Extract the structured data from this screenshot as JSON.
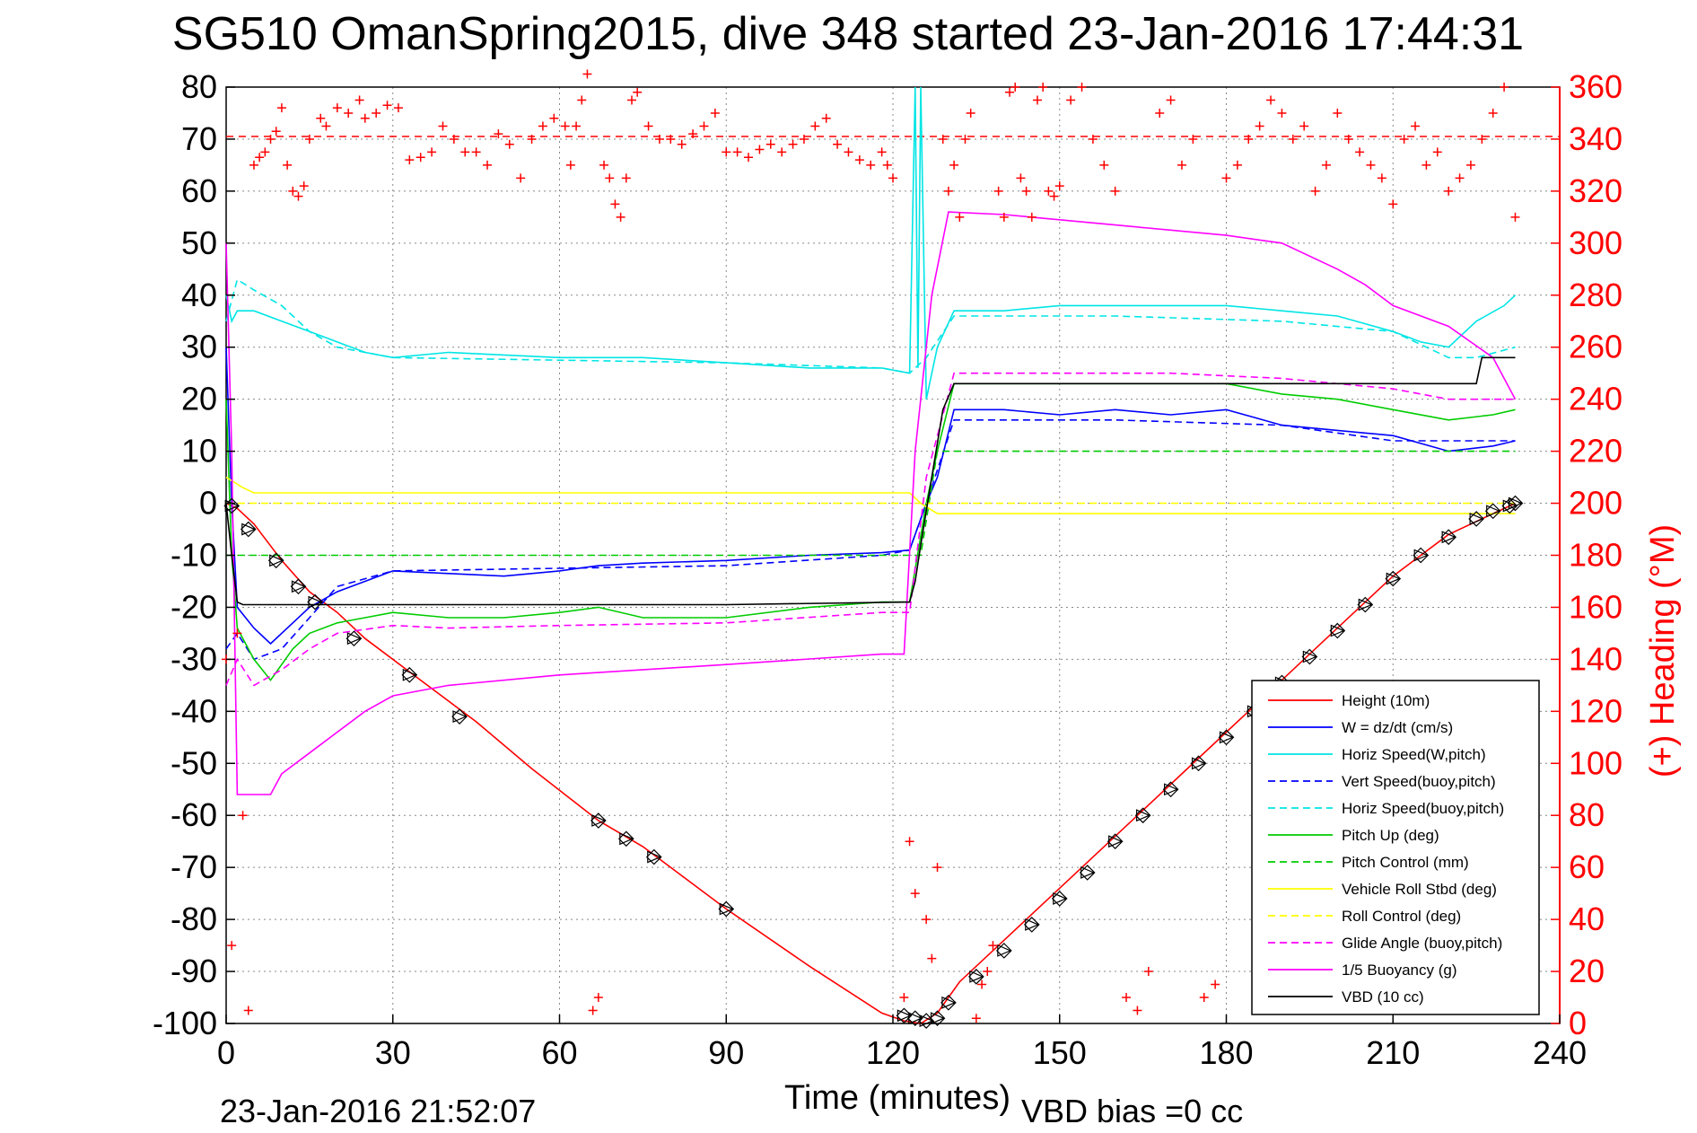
{
  "chart_data": {
    "type": "line",
    "title": "SG510 OmanSpring2015, dive 348 started 23-Jan-2016 17:44:31",
    "xlabel": "Time (minutes)",
    "ylabel_right": "(+) Heading (°M)",
    "xlim": [
      0,
      240
    ],
    "ylim": [
      -100,
      80
    ],
    "y2lim": [
      0,
      360
    ],
    "x_ticks": [
      0,
      30,
      60,
      90,
      120,
      150,
      180,
      210,
      240
    ],
    "y_ticks": [
      80,
      70,
      60,
      50,
      40,
      30,
      20,
      10,
      0,
      -10,
      -20,
      -30,
      -40,
      -50,
      -60,
      -70,
      -80,
      -90,
      -100
    ],
    "y2_ticks": [
      360,
      340,
      320,
      300,
      280,
      260,
      240,
      220,
      200,
      180,
      160,
      140,
      120,
      100,
      80,
      60,
      40,
      20,
      0
    ],
    "grid": true,
    "legend_position": "bottom-right",
    "footer_left": "23-Jan-2016 21:52:07",
    "footer_right": "VBD bias =0 cc",
    "reference_heading": 341,
    "series": [
      {
        "name": "Height (10m)",
        "color": "#ff0000",
        "style": "solid",
        "x": [
          0,
          2,
          5,
          10,
          15,
          20,
          25,
          35,
          45,
          55,
          67,
          75,
          90,
          105,
          118,
          122,
          125,
          128,
          132,
          140,
          150,
          160,
          170,
          180,
          190,
          200,
          210,
          220,
          228,
          232
        ],
        "y": [
          0,
          -1,
          -4,
          -11,
          -17,
          -21,
          -26,
          -34,
          -42,
          -51,
          -61,
          -66,
          -78,
          -89,
          -98,
          -99.5,
          -100,
          -98,
          -92,
          -84,
          -74,
          -64,
          -54,
          -44,
          -34,
          -24,
          -14,
          -6,
          -2,
          0
        ]
      },
      {
        "name": "W = dz/dt (cm/s)",
        "color": "#0000ff",
        "style": "solid",
        "x": [
          0,
          1,
          2,
          5,
          8,
          12,
          15,
          20,
          25,
          30,
          40,
          50,
          60,
          67,
          75,
          90,
          105,
          118,
          123,
          126,
          128,
          131,
          140,
          150,
          160,
          170,
          180,
          190,
          200,
          210,
          220,
          228,
          232
        ],
        "y": [
          30,
          0,
          -20,
          -24,
          -27,
          -23,
          -20,
          -17,
          -15,
          -13,
          -13.5,
          -14,
          -13,
          -12,
          -11.5,
          -11,
          -10,
          -9.5,
          -9,
          0,
          5,
          18,
          18,
          17,
          18,
          17,
          18,
          15,
          14,
          13,
          10,
          11,
          12
        ]
      },
      {
        "name": "Horiz Speed(W,pitch)",
        "color": "#00e5e5",
        "style": "solid",
        "x": [
          0,
          1,
          2,
          5,
          10,
          15,
          20,
          25,
          30,
          40,
          50,
          60,
          75,
          90,
          105,
          118,
          123,
          124,
          124.5,
          125,
          126,
          128,
          131,
          140,
          150,
          160,
          170,
          180,
          190,
          200,
          210,
          215,
          220,
          225,
          230,
          232
        ],
        "y": [
          40,
          35,
          37,
          37,
          35,
          33,
          31,
          29,
          28,
          29,
          28.5,
          28,
          28,
          27,
          26,
          26,
          25,
          80,
          26,
          80,
          20,
          30,
          37,
          37,
          38,
          38,
          38,
          38,
          37,
          36,
          33,
          31,
          30,
          35,
          38,
          40
        ]
      },
      {
        "name": "Vert Speed(buoy,pitch)",
        "color": "#0000ff",
        "style": "dashed",
        "x": [
          0,
          2,
          5,
          10,
          15,
          20,
          30,
          60,
          90,
          118,
          123,
          126,
          131,
          160,
          190,
          210,
          232
        ],
        "y": [
          -28,
          -25,
          -30,
          -28,
          -22,
          -16,
          -13,
          -12.5,
          -12,
          -10,
          -9,
          0,
          16,
          16,
          15,
          12,
          12
        ]
      },
      {
        "name": "Horiz Speed(buoy,pitch)",
        "color": "#00e5e5",
        "style": "dashed",
        "x": [
          0,
          2,
          5,
          10,
          15,
          20,
          30,
          60,
          90,
          118,
          123,
          126,
          131,
          160,
          190,
          210,
          220,
          225,
          232
        ],
        "y": [
          35,
          43,
          41,
          38,
          33,
          30,
          28,
          27.5,
          27,
          26,
          25,
          28,
          36,
          36,
          35,
          33,
          28,
          28,
          30
        ]
      },
      {
        "name": "Pitch Up (deg)",
        "color": "#00cc00",
        "style": "solid",
        "x": [
          0,
          1,
          2,
          5,
          8,
          12,
          15,
          20,
          25,
          30,
          40,
          50,
          60,
          67,
          75,
          90,
          105,
          118,
          123,
          126,
          128,
          131,
          140,
          150,
          160,
          170,
          180,
          190,
          200,
          210,
          220,
          228,
          232
        ],
        "y": [
          20,
          -10,
          -24,
          -30,
          -34,
          -28,
          -25,
          -23,
          -22,
          -21,
          -22,
          -22,
          -21,
          -20,
          -22,
          -22,
          -20,
          -19,
          -19,
          0,
          10,
          23,
          23,
          23,
          23,
          23,
          23,
          21,
          20,
          18,
          16,
          17,
          18
        ]
      },
      {
        "name": "Pitch Control (mm)",
        "color": "#00cc00",
        "style": "dashed",
        "x": [
          0,
          2,
          3,
          20,
          40,
          60,
          90,
          120,
          123,
          125,
          128,
          131,
          160,
          190,
          232
        ],
        "y": [
          -10,
          -10,
          -10,
          -10,
          -10,
          -10,
          -10,
          -10,
          -10,
          -10,
          10,
          10,
          10,
          10,
          10
        ]
      },
      {
        "name": "Vehicle Roll Stbd (deg)",
        "color": "#ffff00",
        "style": "solid",
        "x": [
          0,
          3,
          5,
          10,
          15,
          20,
          30,
          60,
          90,
          105,
          118,
          123,
          125,
          128,
          131,
          140,
          160,
          180,
          200,
          220,
          232
        ],
        "y": [
          5,
          3,
          2,
          2,
          2,
          2,
          2,
          2,
          2,
          2,
          2,
          2,
          0,
          -2,
          -2,
          -2,
          -2,
          -2,
          -2,
          -2,
          -2
        ]
      },
      {
        "name": "Roll Control (deg)",
        "color": "#ffff00",
        "style": "dashed",
        "x": [
          0,
          3,
          20,
          60,
          90,
          123,
          125,
          128,
          160,
          200,
          232
        ],
        "y": [
          0,
          0,
          0,
          0,
          0,
          0,
          0,
          0,
          0,
          0,
          0
        ]
      },
      {
        "name": "Glide Angle (buoy,pitch)",
        "color": "#ff00ff",
        "style": "dashed",
        "x": [
          0,
          2,
          5,
          10,
          15,
          20,
          30,
          40,
          60,
          90,
          118,
          123,
          126,
          131,
          150,
          170,
          190,
          210,
          220,
          232
        ],
        "y": [
          -35,
          -30,
          -35,
          -32,
          -28,
          -25,
          -23.5,
          -24,
          -23.5,
          -23,
          -21,
          -21,
          5,
          25,
          25,
          25,
          24,
          22,
          20,
          20
        ]
      },
      {
        "name": "1/5 Buoyancy (g)",
        "color": "#ff00ff",
        "style": "solid",
        "x": [
          0,
          1,
          2,
          5,
          8,
          10,
          15,
          20,
          25,
          30,
          40,
          60,
          90,
          118,
          122,
          124,
          127,
          130,
          140,
          160,
          180,
          190,
          200,
          205,
          210,
          220,
          228,
          232
        ],
        "y": [
          50,
          10,
          -56,
          -56,
          -56,
          -52,
          -48,
          -44,
          -40,
          -37,
          -35,
          -33,
          -31,
          -29,
          -29,
          10,
          40,
          56,
          55.5,
          53.5,
          51.5,
          50,
          45,
          42,
          38,
          34,
          28,
          20
        ]
      },
      {
        "name": "VBD (10 cc)",
        "color": "#000000",
        "style": "solid",
        "x": [
          0,
          1,
          2,
          3,
          20,
          60,
          90,
          123,
          124,
          125,
          127,
          129,
          131,
          160,
          200,
          225,
          226,
          232
        ],
        "y": [
          0,
          -10,
          -19,
          -19.5,
          -19.5,
          -19.5,
          -19.5,
          -19,
          -15,
          -8,
          5,
          18,
          23,
          23,
          23,
          23,
          28,
          28
        ]
      }
    ],
    "markers": [
      {
        "name": "depth samples",
        "symbol": "diamond-triangle",
        "color": "#000000",
        "x": [
          1,
          4,
          9,
          13,
          16,
          23,
          33,
          42,
          67,
          72,
          77,
          90,
          122,
          124,
          126,
          128,
          130,
          135,
          140,
          145,
          150,
          155,
          160,
          165,
          170,
          175,
          180,
          185,
          190,
          195,
          200,
          205,
          210,
          215,
          220,
          225,
          228,
          231,
          232
        ],
        "y": [
          -0.5,
          -5,
          -11,
          -16,
          -19,
          -26,
          -33,
          -41,
          -61,
          -64.5,
          -68,
          -78,
          -98.5,
          -99,
          -99.5,
          -99,
          -96,
          -91,
          -86,
          -81,
          -76,
          -71,
          -65,
          -60,
          -55,
          -50,
          -45,
          -40,
          -34.5,
          -29.5,
          -24.5,
          -19.5,
          -14.5,
          -10,
          -6.5,
          -3,
          -1.5,
          -0.5,
          0
        ]
      },
      {
        "name": "heading",
        "symbol": "plus",
        "color": "#ff0000",
        "x": [
          0,
          1,
          2,
          3,
          4,
          5,
          6,
          7,
          8,
          9,
          10,
          11,
          12,
          13,
          14,
          15,
          17,
          18,
          20,
          22,
          24,
          25,
          27,
          29,
          31,
          33,
          35,
          37,
          39,
          41,
          43,
          45,
          47,
          49,
          51,
          53,
          55,
          57,
          59,
          61,
          62,
          63,
          64,
          65,
          66,
          67,
          68,
          69,
          70,
          71,
          72,
          73,
          74,
          76,
          78,
          80,
          82,
          84,
          86,
          88,
          90,
          92,
          94,
          96,
          98,
          100,
          102,
          104,
          106,
          108,
          110,
          112,
          114,
          116,
          118,
          119,
          120,
          122,
          123,
          124,
          126,
          127,
          128,
          129,
          130,
          131,
          132,
          133,
          134,
          135,
          136,
          137,
          138,
          139,
          140,
          141,
          142,
          143,
          144,
          145,
          146,
          147,
          148,
          149,
          150,
          152,
          154,
          156,
          158,
          160,
          162,
          164,
          166,
          168,
          170,
          172,
          174,
          176,
          178,
          180,
          182,
          184,
          186,
          188,
          190,
          192,
          194,
          196,
          198,
          200,
          202,
          204,
          206,
          208,
          210,
          212,
          214,
          216,
          218,
          220,
          222,
          224,
          226,
          228,
          230,
          232
        ],
        "y": [
          140,
          30,
          150,
          80,
          5,
          330,
          333,
          335,
          340,
          343,
          352,
          330,
          320,
          318,
          322,
          340,
          348,
          345,
          352,
          350,
          355,
          348,
          350,
          353,
          352,
          332,
          333,
          335,
          345,
          340,
          335,
          335,
          330,
          342,
          338,
          325,
          340,
          345,
          348,
          345,
          330,
          345,
          355,
          365,
          5,
          10,
          330,
          325,
          315,
          310,
          325,
          355,
          358,
          345,
          340,
          340,
          338,
          342,
          345,
          350,
          335,
          335,
          333,
          336,
          338,
          335,
          338,
          340,
          345,
          348,
          338,
          335,
          332,
          330,
          335,
          330,
          325,
          10,
          70,
          50,
          40,
          25,
          60,
          340,
          320,
          330,
          310,
          340,
          350,
          2,
          15,
          20,
          30,
          320,
          310,
          358,
          360,
          325,
          320,
          310,
          355,
          360,
          320,
          318,
          322,
          355,
          360,
          340,
          330,
          320,
          10,
          5,
          20,
          350,
          355,
          330,
          340,
          10,
          15,
          325,
          330,
          340,
          345,
          355,
          350,
          340,
          345,
          320,
          330,
          350,
          340,
          335,
          330,
          325,
          315,
          340,
          345,
          330,
          335,
          320,
          325,
          330,
          340,
          350,
          360,
          310
        ]
      }
    ]
  }
}
